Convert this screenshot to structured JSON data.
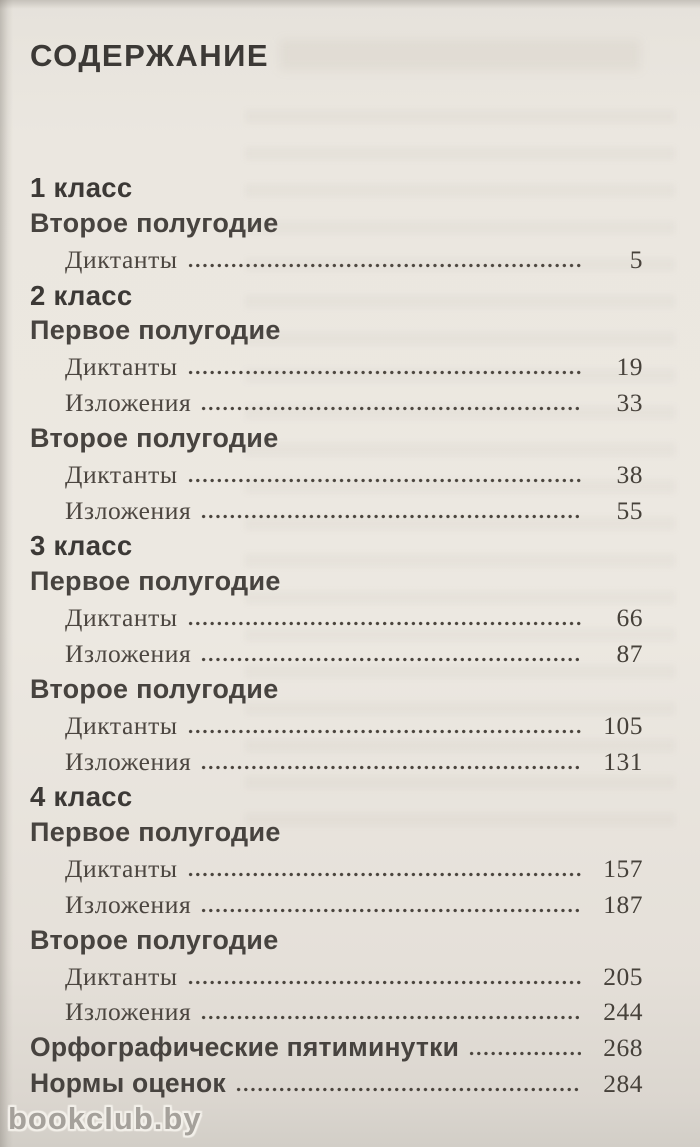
{
  "page": {
    "title": "СОДЕРЖАНИЕ",
    "watermark": "bookclub.by"
  },
  "colors": {
    "paper": "#eae6df",
    "ink": "#3c3936",
    "entry_ink": "#4c4640",
    "watermark_ink": "#a5a19b"
  },
  "toc": {
    "rows": [
      {
        "type": "class",
        "label": "1 класс"
      },
      {
        "type": "semester",
        "label": "Второе полугодие"
      },
      {
        "type": "entry",
        "label": "Диктанты",
        "page": "5"
      },
      {
        "type": "class",
        "label": "2 класс"
      },
      {
        "type": "semester",
        "label": "Первое полугодие"
      },
      {
        "type": "entry",
        "label": "Диктанты",
        "page": "19"
      },
      {
        "type": "entry",
        "label": "Изложения",
        "page": "33"
      },
      {
        "type": "semester",
        "label": "Второе полугодие"
      },
      {
        "type": "entry",
        "label": "Диктанты",
        "page": "38"
      },
      {
        "type": "entry",
        "label": "Изложения",
        "page": "55"
      },
      {
        "type": "class",
        "label": "3 класс"
      },
      {
        "type": "semester",
        "label": "Первое полугодие"
      },
      {
        "type": "entry",
        "label": "Диктанты",
        "page": "66"
      },
      {
        "type": "entry",
        "label": "Изложения",
        "page": "87"
      },
      {
        "type": "semester",
        "label": "Второе полугодие"
      },
      {
        "type": "entry",
        "label": "Диктанты",
        "page": "105"
      },
      {
        "type": "entry",
        "label": "Изложения",
        "page": "131"
      },
      {
        "type": "class",
        "label": "4 класс"
      },
      {
        "type": "semester",
        "label": "Первое полугодие"
      },
      {
        "type": "entry",
        "label": "Диктанты",
        "page": "157"
      },
      {
        "type": "entry",
        "label": "Изложения",
        "page": "187"
      },
      {
        "type": "semester",
        "label": "Второе полугодие"
      },
      {
        "type": "entry",
        "label": "Диктанты",
        "page": "205"
      },
      {
        "type": "entry",
        "label": "Изложения",
        "page": "244"
      },
      {
        "type": "toplevel",
        "label": "Орфографические пятиминутки",
        "page": "268"
      },
      {
        "type": "toplevel",
        "label": "Нормы оценок",
        "page": "284"
      }
    ]
  }
}
